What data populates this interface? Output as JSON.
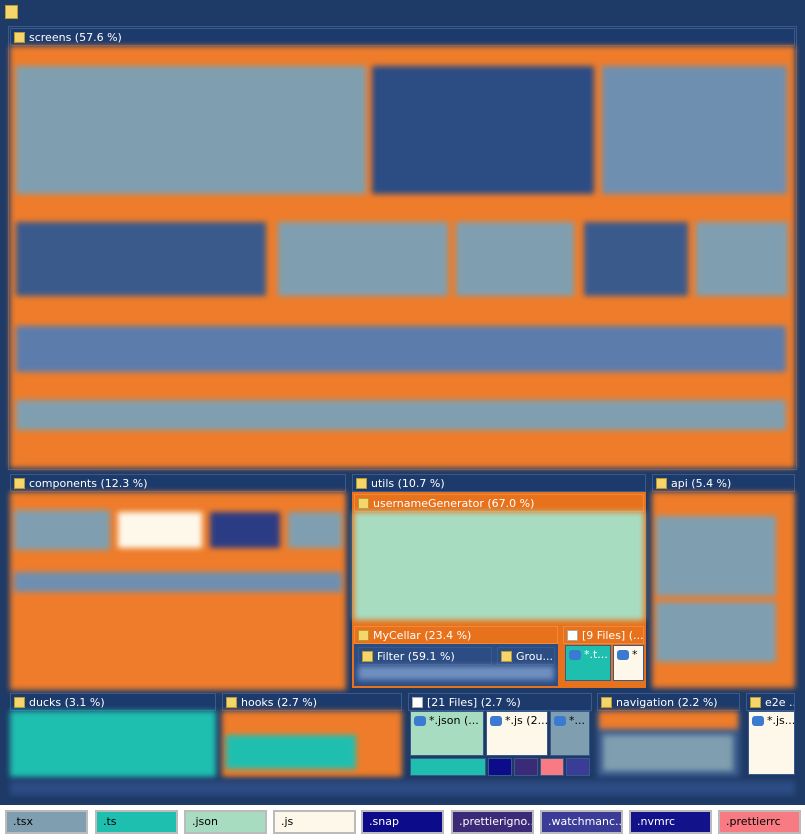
{
  "nodes": [
    {
      "label": "screens (57.6 %)"
    },
    {
      "label": "components (12.3 %)"
    },
    {
      "label": "utils (10.7 %)"
    },
    {
      "label": "usernameGenerator (67.0 %)"
    },
    {
      "label": "MyCellar (23.4 %)"
    },
    {
      "label": "Filter (59.1 %)"
    },
    {
      "label": "Grou..."
    },
    {
      "label": "[9 Files] (..."
    },
    {
      "label": "*.t..."
    },
    {
      "label": "*"
    },
    {
      "label": "api (5.4 %)"
    },
    {
      "label": "ducks (3.1 %)"
    },
    {
      "label": "hooks (2.7 %)"
    },
    {
      "label": "[21 Files] (2.7 %)"
    },
    {
      "label": "*.json (..."
    },
    {
      "label": "*.js (2..."
    },
    {
      "label": "*..."
    },
    {
      "label": "navigation (2.2 %)"
    },
    {
      "label": "e2e ..."
    },
    {
      "label": "*.js..."
    }
  ],
  "legend": [
    {
      "label": ".tsx",
      "color": "#7f9fb0"
    },
    {
      "label": ".ts",
      "color": "#1fbfb0"
    },
    {
      "label": ".json",
      "color": "#a8dcc0"
    },
    {
      "label": ".js",
      "color": "#fdf8ea"
    },
    {
      "label": ".snap",
      "color": "#0c0c8a"
    },
    {
      "label": ".prettierigno...",
      "color": "#3b2a78"
    },
    {
      "label": ".watchmanc...",
      "color": "#3a3c98"
    },
    {
      "label": ".nvmrc",
      "color": "#12128a"
    },
    {
      "label": ".prettierrc",
      "color": "#f87a82"
    }
  ]
}
